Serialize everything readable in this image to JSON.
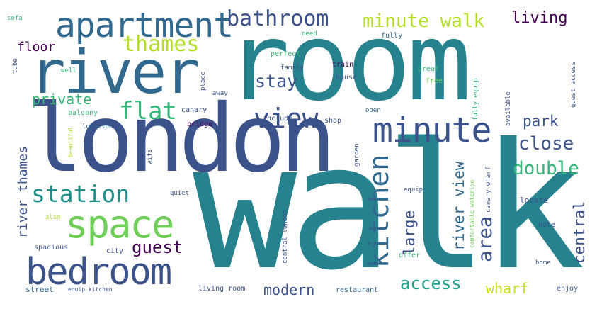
{
  "palette": {
    "dark_purple": "#440154",
    "indigo": "#3b528b",
    "blue": "#31688e",
    "teal": "#21908d",
    "teal_green": "#1f9e89",
    "green": "#35b779",
    "light_green": "#6ece58",
    "lime": "#b5de2b",
    "yellow": "#c8e020",
    "light_blue": "#26828e"
  },
  "words": [
    "room",
    "walk",
    "london",
    "river",
    "apartment",
    "minute",
    "bedroom",
    "space",
    "station",
    "flat",
    "view",
    "thames",
    "bathroom",
    "minute walk",
    "living",
    "kitchen",
    "double",
    "close",
    "stay",
    "park",
    "access",
    "guest",
    "modern",
    "central",
    "area",
    "river view",
    "wharf",
    "large",
    "private",
    "floor",
    "river thames",
    "canary",
    "balcony",
    "location",
    "bridge",
    "wifi",
    "quiet",
    "also",
    "spacious",
    "city",
    "street",
    "equip kitchen",
    "living room",
    "restaurant",
    "central london",
    "comfortable waterloo",
    "canary wharf",
    "equip",
    "locate",
    "note",
    "home",
    "enjoy",
    "offer",
    "include",
    "garden",
    "shop",
    "open",
    "fully equip",
    "available",
    "guest access",
    "great",
    "free",
    "house",
    "family",
    "perfect",
    "place",
    "away",
    "need",
    "fully",
    "train",
    "tube",
    "well",
    "sofa",
    "beautiful"
  ]
}
